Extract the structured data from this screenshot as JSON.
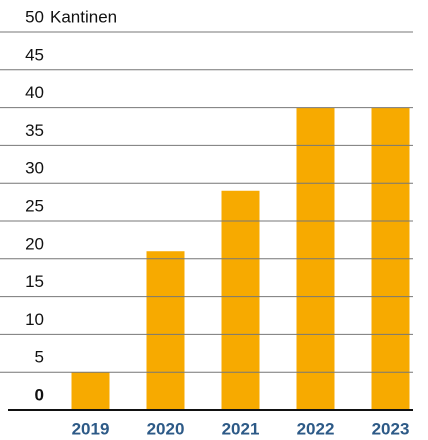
{
  "chart_data": {
    "type": "bar",
    "y_label": "Kantinen",
    "categories": [
      "2019",
      "2020",
      "2021",
      "2022",
      "2023"
    ],
    "values": [
      5,
      21,
      29,
      40,
      40
    ],
    "color": "#f7aa00",
    "ylim": [
      0,
      50
    ],
    "yticks": [
      0,
      5,
      10,
      15,
      20,
      25,
      30,
      35,
      40,
      45,
      50
    ],
    "grid": true
  }
}
